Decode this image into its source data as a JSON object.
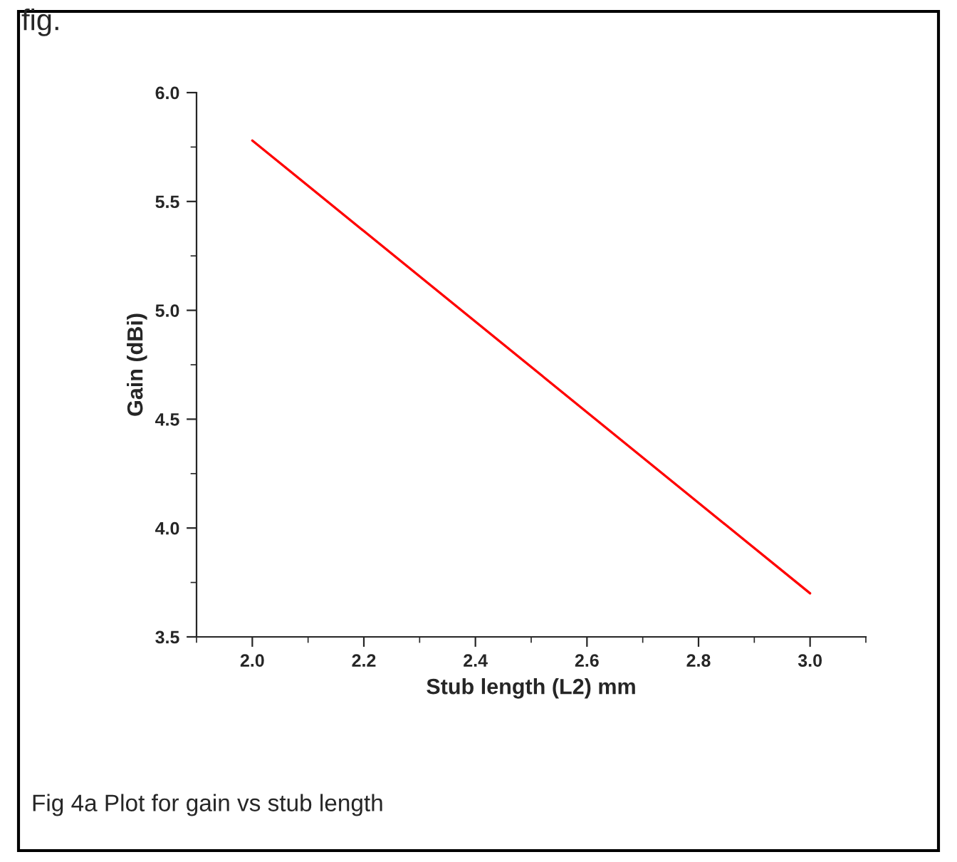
{
  "chart_data": {
    "type": "line",
    "xlabel": "Stub length (L2) mm",
    "ylabel": "Gain (dBi)",
    "x": [
      2.0,
      3.0
    ],
    "series": [
      {
        "color": "#ff0000",
        "values": [
          5.78,
          3.7
        ]
      }
    ],
    "xlim": [
      1.9,
      3.1
    ],
    "xticks": [
      {
        "value": 2,
        "label": "2.0"
      },
      2.2,
      2.4,
      2.6,
      2.8,
      {
        "value": 3,
        "label": "3.0"
      }
    ],
    "ylim": [
      3.5,
      6.0
    ],
    "yticks": [
      3.5,
      {
        "value": 4,
        "label": "4.0"
      },
      4.5,
      {
        "value": 5,
        "label": "5.0"
      },
      5.5,
      {
        "value": 6,
        "label": "6.0"
      }
    ],
    "grid": false,
    "legend": false,
    "marker": "none",
    "line_style": "solid",
    "annotations": [
      "fig.",
      "Fig 4a Plot for gain vs stub length"
    ]
  }
}
